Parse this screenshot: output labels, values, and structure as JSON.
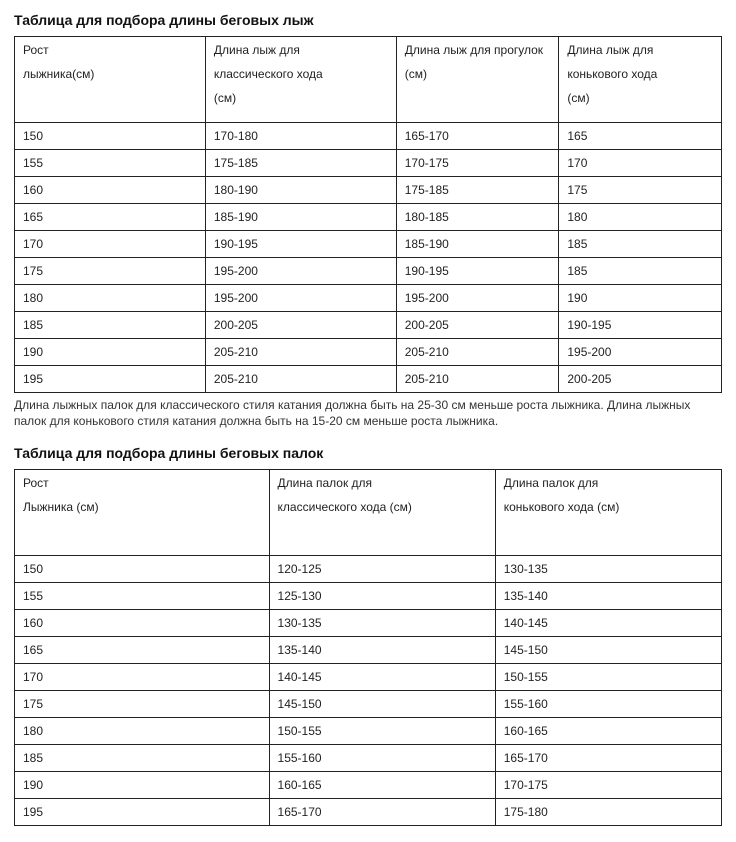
{
  "skis": {
    "title": "Таблица для подбора длины беговых лыж",
    "columns": [
      [
        "Рост",
        "лыжника(см)"
      ],
      [
        "Длина лыж для",
        "классического хода",
        "(см)"
      ],
      [
        "Длина лыж для прогулок",
        "(см)"
      ],
      [
        "Длина лыж для",
        "конькового хода",
        "(см)"
      ]
    ],
    "col_widths": [
      "27%",
      "27%",
      "23%",
      "23%"
    ],
    "rows": [
      [
        "150",
        "170-180",
        "165-170",
        "165"
      ],
      [
        "155",
        "175-185",
        "170-175",
        "170"
      ],
      [
        "160",
        "180-190",
        "175-185",
        "175"
      ],
      [
        "165",
        "185-190",
        "180-185",
        "180"
      ],
      [
        "170",
        "190-195",
        "185-190",
        "185"
      ],
      [
        "175",
        "195-200",
        "190-195",
        "185"
      ],
      [
        "180",
        "195-200",
        "195-200",
        "190"
      ],
      [
        "185",
        "200-205",
        "200-205",
        "190-195"
      ],
      [
        "190",
        "205-210",
        "205-210",
        "195-200"
      ],
      [
        "195",
        "205-210",
        "205-210",
        "200-205"
      ]
    ],
    "note": "Длина лыжных палок для классического стиля катания должна быть на 25-30 см меньше роста лыжника. Длина лыжных палок для конькового стиля катания должна быть на 15-20 см меньше роста лыжника."
  },
  "poles": {
    "title": "Таблица для подбора длины беговых палок",
    "columns": [
      [
        "Рост",
        "Лыжника (см)"
      ],
      [
        "Длина палок для",
        "классического хода (см)"
      ],
      [
        "Длина палок для",
        "конькового хода (см)"
      ]
    ],
    "col_widths": [
      "36%",
      "32%",
      "32%"
    ],
    "rows": [
      [
        "150",
        "120-125",
        "130-135"
      ],
      [
        "155",
        "125-130",
        "135-140"
      ],
      [
        "160",
        "130-135",
        "140-145"
      ],
      [
        "165",
        "135-140",
        "145-150"
      ],
      [
        "170",
        "140-145",
        "150-155"
      ],
      [
        "175",
        "145-150",
        "155-160"
      ],
      [
        "180",
        "150-155",
        "160-165"
      ],
      [
        "185",
        "155-160",
        "165-170"
      ],
      [
        "190",
        "160-165",
        "170-175"
      ],
      [
        "195",
        "165-170",
        "175-180"
      ]
    ]
  },
  "style": {
    "border_color": "#222222",
    "font_family": "Arial",
    "body_fontsize": 12,
    "heading_fontsize": 14,
    "background": "#ffffff",
    "text_color": "#222222"
  }
}
